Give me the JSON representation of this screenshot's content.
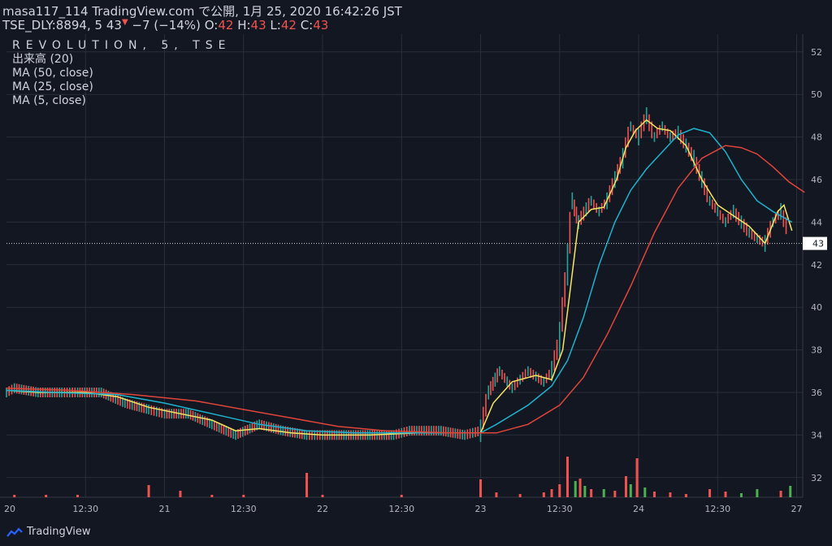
{
  "header": {
    "line1": "masa117_114 TradingView.com で公開, 1月 25, 2020 16:42:26 JST",
    "symbol": "TSE_DLY:8894, 5",
    "last": "43",
    "change": "−7 (−14%)",
    "o_label": "O:",
    "o": "42",
    "h_label": "H:",
    "h": "43",
    "l_label": "L:",
    "l": "42",
    "c_label": "C:",
    "c": "43"
  },
  "legend": {
    "title": "REVOLUTION, 5, TSE",
    "volume": "出来高 (20)",
    "ma50": "MA (50, close)",
    "ma25": "MA (25, close)",
    "ma5": "MA (5, close)"
  },
  "footer": {
    "brand": "TradingView",
    "logo_icon": "tradingview-logo-icon"
  },
  "colors": {
    "up": "#26a69a",
    "down": "#ef5350",
    "ma5": "#f5e663",
    "ma25": "#1fb3cf",
    "ma50": "#e0453a",
    "vol_up": "#4caf50",
    "vol_down": "#ef5350",
    "bg": "#131722",
    "grid": "#2a2e39"
  },
  "chart_data": {
    "type": "line",
    "title": "REVOLUTION, 5, TSE",
    "ylim": [
      31,
      53
    ],
    "y_ticks": [
      32,
      34,
      36,
      38,
      40,
      42,
      44,
      46,
      48,
      50,
      52
    ],
    "x_tick_labels": [
      "20",
      "12:30",
      "21",
      "12:30",
      "22",
      "12:30",
      "23",
      "12:30",
      "24",
      "12:30",
      "27"
    ],
    "last_price_label": "43",
    "grid": true,
    "price_points": [
      {
        "t": 0,
        "p": 36
      },
      {
        "t": 0.05,
        "p": 36.2
      },
      {
        "t": 0.2,
        "p": 36
      },
      {
        "t": 0.35,
        "p": 36
      },
      {
        "t": 0.45,
        "p": 36
      },
      {
        "t": 0.6,
        "p": 36
      },
      {
        "t": 0.75,
        "p": 35.5
      },
      {
        "t": 0.9,
        "p": 35.2
      },
      {
        "t": 1.0,
        "p": 35
      },
      {
        "t": 1.15,
        "p": 35
      },
      {
        "t": 1.3,
        "p": 34.5
      },
      {
        "t": 1.45,
        "p": 34
      },
      {
        "t": 1.6,
        "p": 34.5
      },
      {
        "t": 1.75,
        "p": 34.2
      },
      {
        "t": 1.9,
        "p": 34
      },
      {
        "t": 2.0,
        "p": 34
      },
      {
        "t": 2.15,
        "p": 34
      },
      {
        "t": 2.3,
        "p": 34
      },
      {
        "t": 2.45,
        "p": 34
      },
      {
        "t": 2.55,
        "p": 34.2
      },
      {
        "t": 2.75,
        "p": 34.2
      },
      {
        "t": 2.9,
        "p": 34
      },
      {
        "t": 3.0,
        "p": 34.2
      },
      {
        "t": 3.05,
        "p": 36
      },
      {
        "t": 3.12,
        "p": 37
      },
      {
        "t": 3.2,
        "p": 36.2
      },
      {
        "t": 3.3,
        "p": 37
      },
      {
        "t": 3.4,
        "p": 36.5
      },
      {
        "t": 3.45,
        "p": 37
      },
      {
        "t": 3.5,
        "p": 38.5
      },
      {
        "t": 3.55,
        "p": 42
      },
      {
        "t": 3.58,
        "p": 45
      },
      {
        "t": 3.62,
        "p": 44
      },
      {
        "t": 3.7,
        "p": 45
      },
      {
        "t": 3.75,
        "p": 44.5
      },
      {
        "t": 3.8,
        "p": 45
      },
      {
        "t": 3.85,
        "p": 46
      },
      {
        "t": 3.9,
        "p": 47
      },
      {
        "t": 3.95,
        "p": 48.5
      },
      {
        "t": 4.0,
        "p": 48
      },
      {
        "t": 4.05,
        "p": 49
      },
      {
        "t": 4.1,
        "p": 48
      },
      {
        "t": 4.15,
        "p": 48.5
      },
      {
        "t": 4.2,
        "p": 48
      },
      {
        "t": 4.25,
        "p": 48.2
      },
      {
        "t": 4.35,
        "p": 47
      },
      {
        "t": 4.45,
        "p": 45
      },
      {
        "t": 4.5,
        "p": 44.5
      },
      {
        "t": 4.55,
        "p": 44
      },
      {
        "t": 4.6,
        "p": 44.5
      },
      {
        "t": 4.7,
        "p": 43.5
      },
      {
        "t": 4.8,
        "p": 43
      },
      {
        "t": 4.85,
        "p": 44
      },
      {
        "t": 4.9,
        "p": 44.5
      },
      {
        "t": 4.95,
        "p": 43.5
      }
    ],
    "series": [
      {
        "name": "MA (5, close)",
        "points": [
          {
            "t": 0,
            "p": 36.1
          },
          {
            "t": 0.2,
            "p": 36
          },
          {
            "t": 0.5,
            "p": 36
          },
          {
            "t": 0.7,
            "p": 35.8
          },
          {
            "t": 0.9,
            "p": 35.3
          },
          {
            "t": 1.1,
            "p": 35
          },
          {
            "t": 1.3,
            "p": 34.7
          },
          {
            "t": 1.45,
            "p": 34.2
          },
          {
            "t": 1.6,
            "p": 34.3
          },
          {
            "t": 1.8,
            "p": 34.1
          },
          {
            "t": 2.0,
            "p": 34
          },
          {
            "t": 2.3,
            "p": 34
          },
          {
            "t": 2.6,
            "p": 34.1
          },
          {
            "t": 2.9,
            "p": 34.1
          },
          {
            "t": 3.0,
            "p": 34.1
          },
          {
            "t": 3.08,
            "p": 35.5
          },
          {
            "t": 3.2,
            "p": 36.5
          },
          {
            "t": 3.35,
            "p": 36.8
          },
          {
            "t": 3.45,
            "p": 36.6
          },
          {
            "t": 3.52,
            "p": 38
          },
          {
            "t": 3.57,
            "p": 41
          },
          {
            "t": 3.62,
            "p": 44
          },
          {
            "t": 3.7,
            "p": 44.6
          },
          {
            "t": 3.78,
            "p": 44.7
          },
          {
            "t": 3.86,
            "p": 46
          },
          {
            "t": 3.92,
            "p": 47.5
          },
          {
            "t": 3.98,
            "p": 48.3
          },
          {
            "t": 4.05,
            "p": 48.8
          },
          {
            "t": 4.12,
            "p": 48.4
          },
          {
            "t": 4.2,
            "p": 48.3
          },
          {
            "t": 4.3,
            "p": 47.6
          },
          {
            "t": 4.4,
            "p": 46
          },
          {
            "t": 4.5,
            "p": 44.8
          },
          {
            "t": 4.6,
            "p": 44.3
          },
          {
            "t": 4.7,
            "p": 43.8
          },
          {
            "t": 4.8,
            "p": 43
          },
          {
            "t": 4.88,
            "p": 44.5
          },
          {
            "t": 4.92,
            "p": 44.8
          },
          {
            "t": 4.97,
            "p": 43.6
          }
        ]
      },
      {
        "name": "MA (25, close)",
        "points": [
          {
            "t": 0,
            "p": 36.1
          },
          {
            "t": 0.3,
            "p": 36
          },
          {
            "t": 0.7,
            "p": 35.9
          },
          {
            "t": 1.0,
            "p": 35.5
          },
          {
            "t": 1.3,
            "p": 35
          },
          {
            "t": 1.6,
            "p": 34.5
          },
          {
            "t": 1.9,
            "p": 34.2
          },
          {
            "t": 2.2,
            "p": 34.1
          },
          {
            "t": 2.6,
            "p": 34.1
          },
          {
            "t": 3.0,
            "p": 34.1
          },
          {
            "t": 3.1,
            "p": 34.5
          },
          {
            "t": 3.3,
            "p": 35.4
          },
          {
            "t": 3.45,
            "p": 36.3
          },
          {
            "t": 3.55,
            "p": 37.5
          },
          {
            "t": 3.65,
            "p": 39.5
          },
          {
            "t": 3.75,
            "p": 42
          },
          {
            "t": 3.85,
            "p": 44
          },
          {
            "t": 3.95,
            "p": 45.5
          },
          {
            "t": 4.05,
            "p": 46.5
          },
          {
            "t": 4.15,
            "p": 47.3
          },
          {
            "t": 4.25,
            "p": 48.1
          },
          {
            "t": 4.35,
            "p": 48.4
          },
          {
            "t": 4.45,
            "p": 48.2
          },
          {
            "t": 4.55,
            "p": 47.3
          },
          {
            "t": 4.65,
            "p": 46
          },
          {
            "t": 4.75,
            "p": 45
          },
          {
            "t": 4.85,
            "p": 44.5
          },
          {
            "t": 4.97,
            "p": 44
          }
        ]
      },
      {
        "name": "MA (50, close)",
        "points": [
          {
            "t": 0,
            "p": 36.2
          },
          {
            "t": 0.4,
            "p": 36.1
          },
          {
            "t": 0.8,
            "p": 35.9
          },
          {
            "t": 1.2,
            "p": 35.6
          },
          {
            "t": 1.5,
            "p": 35.2
          },
          {
            "t": 1.8,
            "p": 34.8
          },
          {
            "t": 2.1,
            "p": 34.4
          },
          {
            "t": 2.4,
            "p": 34.2
          },
          {
            "t": 2.8,
            "p": 34.1
          },
          {
            "t": 3.1,
            "p": 34.1
          },
          {
            "t": 3.3,
            "p": 34.5
          },
          {
            "t": 3.5,
            "p": 35.4
          },
          {
            "t": 3.65,
            "p": 36.7
          },
          {
            "t": 3.8,
            "p": 38.7
          },
          {
            "t": 3.95,
            "p": 41
          },
          {
            "t": 4.1,
            "p": 43.5
          },
          {
            "t": 4.25,
            "p": 45.6
          },
          {
            "t": 4.4,
            "p": 47
          },
          {
            "t": 4.55,
            "p": 47.6
          },
          {
            "t": 4.65,
            "p": 47.5
          },
          {
            "t": 4.75,
            "p": 47.2
          },
          {
            "t": 4.85,
            "p": 46.6
          },
          {
            "t": 4.95,
            "p": 45.9
          },
          {
            "t": 5.05,
            "p": 45.4
          }
        ]
      }
    ],
    "volume_bars": [
      {
        "t": 0.05,
        "v": 0.3,
        "up": false
      },
      {
        "t": 0.25,
        "v": 0.3,
        "up": false
      },
      {
        "t": 0.45,
        "v": 0.3,
        "up": false
      },
      {
        "t": 0.9,
        "v": 1.5,
        "up": false
      },
      {
        "t": 1.1,
        "v": 0.8,
        "up": false
      },
      {
        "t": 1.3,
        "v": 0.3,
        "up": false
      },
      {
        "t": 1.5,
        "v": 0.3,
        "up": false
      },
      {
        "t": 1.9,
        "v": 3.0,
        "up": false
      },
      {
        "t": 2.0,
        "v": 0.3,
        "up": false
      },
      {
        "t": 2.5,
        "v": 0.3,
        "up": false
      },
      {
        "t": 3.0,
        "v": 2.2,
        "up": false
      },
      {
        "t": 3.1,
        "v": 0.6,
        "up": false
      },
      {
        "t": 3.25,
        "v": 0.4,
        "up": false
      },
      {
        "t": 3.4,
        "v": 0.6,
        "up": false
      },
      {
        "t": 3.45,
        "v": 1.0,
        "up": false
      },
      {
        "t": 3.5,
        "v": 1.6,
        "up": false
      },
      {
        "t": 3.55,
        "v": 5.0,
        "up": false
      },
      {
        "t": 3.6,
        "v": 2.0,
        "up": true
      },
      {
        "t": 3.63,
        "v": 2.3,
        "up": false
      },
      {
        "t": 3.66,
        "v": 1.4,
        "up": true
      },
      {
        "t": 3.7,
        "v": 1.0,
        "up": false
      },
      {
        "t": 3.78,
        "v": 1.0,
        "up": true
      },
      {
        "t": 3.85,
        "v": 0.8,
        "up": false
      },
      {
        "t": 3.92,
        "v": 2.6,
        "up": false
      },
      {
        "t": 3.95,
        "v": 1.6,
        "up": true
      },
      {
        "t": 3.99,
        "v": 4.8,
        "up": false
      },
      {
        "t": 4.04,
        "v": 1.2,
        "up": true
      },
      {
        "t": 4.1,
        "v": 0.7,
        "up": false
      },
      {
        "t": 4.2,
        "v": 0.6,
        "up": false
      },
      {
        "t": 4.3,
        "v": 0.4,
        "up": false
      },
      {
        "t": 4.45,
        "v": 1.0,
        "up": false
      },
      {
        "t": 4.55,
        "v": 0.7,
        "up": false
      },
      {
        "t": 4.65,
        "v": 0.5,
        "up": true
      },
      {
        "t": 4.75,
        "v": 1.0,
        "up": true
      },
      {
        "t": 4.9,
        "v": 0.8,
        "up": false
      },
      {
        "t": 4.96,
        "v": 1.4,
        "up": true
      }
    ]
  }
}
